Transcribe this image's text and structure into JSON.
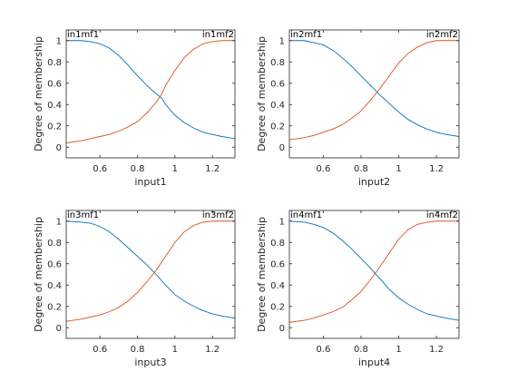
{
  "chart_data": [
    {
      "type": "line",
      "xlabel": "input1",
      "ylabel": "Degree of membership",
      "xlim": [
        0.42,
        1.32
      ],
      "ylim": [
        -0.1,
        1.1
      ],
      "xticks": [
        0.6,
        0.8,
        1,
        1.2
      ],
      "xtick_labels": [
        "0.6",
        "0.8",
        "1",
        "1.2"
      ],
      "yticks": [
        0,
        0.2,
        0.4,
        0.6,
        0.8,
        1
      ],
      "ytick_labels": [
        "0",
        "0.2",
        "0.4",
        "0.6",
        "0.8",
        "1"
      ],
      "grid": false,
      "series": [
        {
          "name": "in1mf1",
          "color": "#0072bd",
          "x": [
            0.42,
            0.5,
            0.55,
            0.6,
            0.65,
            0.7,
            0.75,
            0.8,
            0.85,
            0.9,
            0.93,
            0.95,
            1.0,
            1.05,
            1.1,
            1.15,
            1.2,
            1.25,
            1.32
          ],
          "y": [
            1.0,
            1.0,
            0.99,
            0.97,
            0.93,
            0.86,
            0.77,
            0.67,
            0.58,
            0.5,
            0.46,
            0.4,
            0.3,
            0.23,
            0.18,
            0.14,
            0.12,
            0.1,
            0.08
          ]
        },
        {
          "name": "in1mf2",
          "color": "#d95319",
          "x": [
            0.42,
            0.5,
            0.55,
            0.6,
            0.65,
            0.7,
            0.75,
            0.8,
            0.85,
            0.9,
            0.93,
            0.95,
            1.0,
            1.05,
            1.1,
            1.15,
            1.2,
            1.25,
            1.32
          ],
          "y": [
            0.04,
            0.06,
            0.08,
            0.1,
            0.12,
            0.15,
            0.19,
            0.24,
            0.32,
            0.42,
            0.5,
            0.58,
            0.72,
            0.84,
            0.92,
            0.97,
            0.99,
            1.0,
            1.0
          ]
        }
      ]
    },
    {
      "type": "line",
      "xlabel": "input2",
      "ylabel": "Degree of membership",
      "xlim": [
        0.42,
        1.32
      ],
      "ylim": [
        -0.1,
        1.1
      ],
      "xticks": [
        0.6,
        0.8,
        1,
        1.2
      ],
      "xtick_labels": [
        "0.6",
        "0.8",
        "1",
        "1.2"
      ],
      "yticks": [
        0,
        0.2,
        0.4,
        0.6,
        0.8,
        1
      ],
      "ytick_labels": [
        "0",
        "0.2",
        "0.4",
        "0.6",
        "0.8",
        "1"
      ],
      "grid": false,
      "series": [
        {
          "name": "in2mf1",
          "color": "#0072bd",
          "x": [
            0.42,
            0.5,
            0.55,
            0.6,
            0.65,
            0.7,
            0.75,
            0.8,
            0.85,
            0.9,
            0.95,
            1.0,
            1.05,
            1.1,
            1.15,
            1.2,
            1.25,
            1.32
          ],
          "y": [
            1.0,
            1.0,
            0.98,
            0.96,
            0.91,
            0.84,
            0.76,
            0.67,
            0.58,
            0.49,
            0.41,
            0.33,
            0.26,
            0.21,
            0.17,
            0.14,
            0.12,
            0.1
          ]
        },
        {
          "name": "in2mf2",
          "color": "#d95319",
          "x": [
            0.42,
            0.5,
            0.55,
            0.6,
            0.65,
            0.7,
            0.75,
            0.8,
            0.85,
            0.9,
            0.95,
            1.0,
            1.05,
            1.1,
            1.15,
            1.2,
            1.25,
            1.32
          ],
          "y": [
            0.07,
            0.09,
            0.11,
            0.14,
            0.17,
            0.21,
            0.27,
            0.34,
            0.44,
            0.55,
            0.67,
            0.79,
            0.88,
            0.94,
            0.98,
            1.0,
            1.0,
            1.0
          ]
        }
      ]
    },
    {
      "type": "line",
      "xlabel": "input3",
      "ylabel": "Degree of membership",
      "xlim": [
        0.42,
        1.32
      ],
      "ylim": [
        -0.1,
        1.1
      ],
      "xticks": [
        0.6,
        0.8,
        1,
        1.2
      ],
      "xtick_labels": [
        "0.6",
        "0.8",
        "1",
        "1.2"
      ],
      "yticks": [
        0,
        0.2,
        0.4,
        0.6,
        0.8,
        1
      ],
      "ytick_labels": [
        "0",
        "0.2",
        "0.4",
        "0.6",
        "0.8",
        "1"
      ],
      "grid": false,
      "series": [
        {
          "name": "in3mf1",
          "color": "#0072bd",
          "x": [
            0.42,
            0.5,
            0.55,
            0.6,
            0.65,
            0.7,
            0.75,
            0.8,
            0.85,
            0.9,
            0.95,
            1.0,
            1.05,
            1.1,
            1.15,
            1.2,
            1.25,
            1.32
          ],
          "y": [
            1.0,
            0.99,
            0.98,
            0.95,
            0.9,
            0.83,
            0.75,
            0.67,
            0.59,
            0.5,
            0.4,
            0.31,
            0.25,
            0.2,
            0.16,
            0.13,
            0.11,
            0.09
          ]
        },
        {
          "name": "in3mf2",
          "color": "#d95319",
          "x": [
            0.42,
            0.5,
            0.55,
            0.6,
            0.65,
            0.7,
            0.75,
            0.8,
            0.85,
            0.9,
            0.95,
            1.0,
            1.05,
            1.1,
            1.15,
            1.2,
            1.25,
            1.32
          ],
          "y": [
            0.06,
            0.08,
            0.1,
            0.12,
            0.15,
            0.19,
            0.25,
            0.33,
            0.43,
            0.54,
            0.67,
            0.8,
            0.9,
            0.96,
            0.99,
            1.0,
            1.0,
            1.0
          ]
        }
      ]
    },
    {
      "type": "line",
      "xlabel": "input4",
      "ylabel": "Degree of membership",
      "xlim": [
        0.42,
        1.32
      ],
      "ylim": [
        -0.1,
        1.1
      ],
      "xticks": [
        0.6,
        0.8,
        1,
        1.2
      ],
      "xtick_labels": [
        "0.6",
        "0.8",
        "1",
        "1.2"
      ],
      "yticks": [
        0,
        0.2,
        0.4,
        0.6,
        0.8,
        1
      ],
      "ytick_labels": [
        "0",
        "0.2",
        "0.4",
        "0.6",
        "0.8",
        "1"
      ],
      "grid": false,
      "series": [
        {
          "name": "in4mf1",
          "color": "#0072bd",
          "x": [
            0.42,
            0.5,
            0.55,
            0.6,
            0.65,
            0.7,
            0.75,
            0.8,
            0.85,
            0.9,
            0.95,
            1.0,
            1.05,
            1.1,
            1.15,
            1.2,
            1.25,
            1.32
          ],
          "y": [
            1.0,
            0.99,
            0.97,
            0.94,
            0.89,
            0.82,
            0.74,
            0.65,
            0.56,
            0.46,
            0.36,
            0.28,
            0.22,
            0.17,
            0.13,
            0.11,
            0.09,
            0.07
          ]
        },
        {
          "name": "in4mf2",
          "color": "#d95319",
          "x": [
            0.42,
            0.5,
            0.55,
            0.6,
            0.65,
            0.7,
            0.75,
            0.8,
            0.85,
            0.9,
            0.95,
            1.0,
            1.05,
            1.1,
            1.15,
            1.2,
            1.25,
            1.32
          ],
          "y": [
            0.05,
            0.07,
            0.09,
            0.12,
            0.15,
            0.19,
            0.26,
            0.34,
            0.45,
            0.57,
            0.7,
            0.83,
            0.92,
            0.97,
            0.99,
            1.0,
            1.0,
            1.0
          ]
        }
      ]
    }
  ]
}
